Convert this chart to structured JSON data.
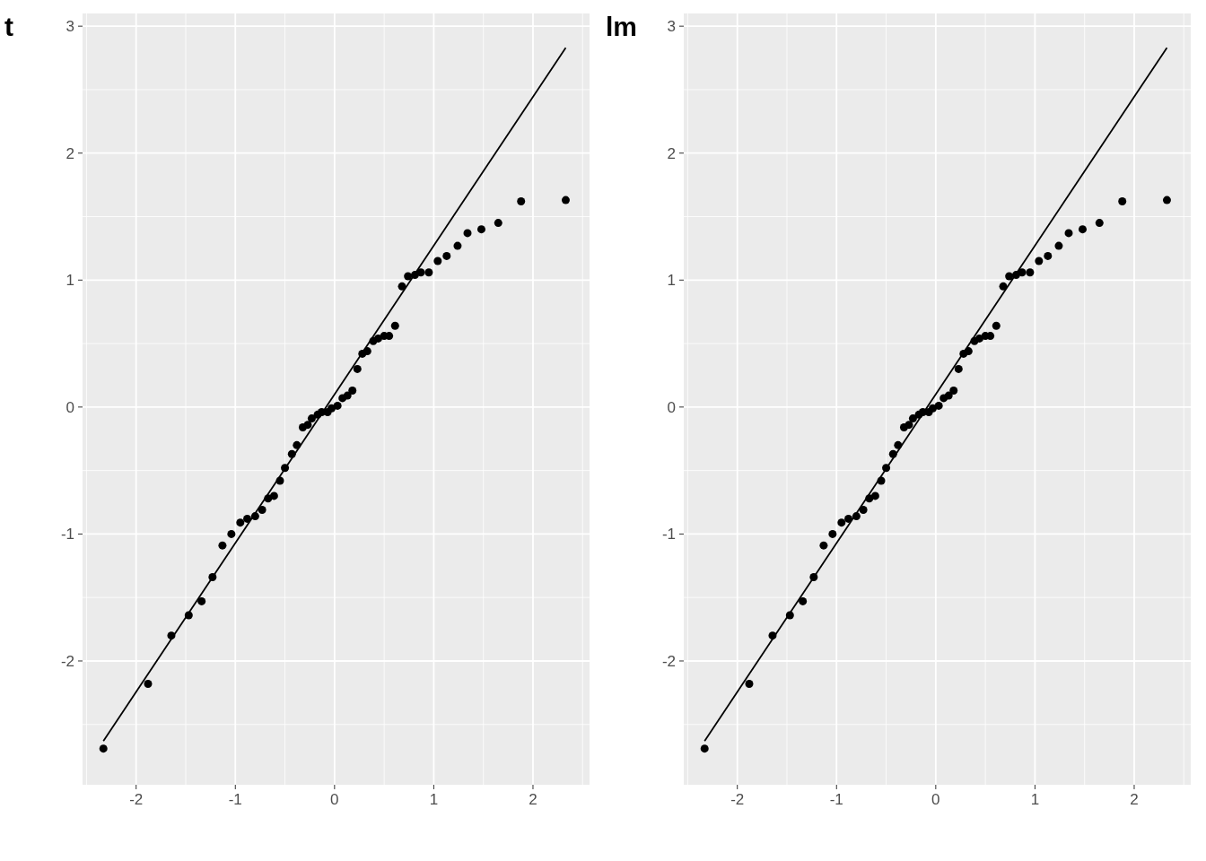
{
  "chart_data": [
    {
      "type": "scatter",
      "title": "t",
      "xlim": [
        -2.54,
        2.57
      ],
      "ylim": [
        -2.975,
        3.1
      ],
      "xticks": [
        -2,
        -1,
        0,
        1,
        2
      ],
      "yticks": [
        -2,
        -1,
        0,
        1,
        2,
        3
      ],
      "grid": true,
      "series": [
        {
          "marker": "circle",
          "color": "#000000",
          "x": [
            -2.33,
            -1.88,
            -1.645,
            -1.47,
            -1.34,
            -1.23,
            -1.13,
            -1.04,
            -0.95,
            -0.88,
            -0.8,
            -0.73,
            -0.67,
            -0.61,
            -0.55,
            -0.5,
            -0.43,
            -0.38,
            -0.32,
            -0.27,
            -0.23,
            -0.17,
            -0.13,
            -0.07,
            -0.03,
            0.03,
            0.08,
            0.13,
            0.18,
            0.23,
            0.28,
            0.33,
            0.39,
            0.44,
            0.5,
            0.55,
            0.61,
            0.68,
            0.74,
            0.81,
            0.87,
            0.95,
            1.04,
            1.13,
            1.24,
            1.34,
            1.48,
            1.65,
            1.88,
            2.33
          ],
          "values": [
            -2.69,
            -2.18,
            -1.8,
            -1.64,
            -1.53,
            -1.34,
            -1.09,
            -1.0,
            -0.91,
            -0.88,
            -0.86,
            -0.81,
            -0.72,
            -0.7,
            -0.58,
            -0.48,
            -0.37,
            -0.3,
            -0.16,
            -0.14,
            -0.09,
            -0.06,
            -0.04,
            -0.04,
            -0.01,
            0.01,
            0.07,
            0.09,
            0.13,
            0.3,
            0.42,
            0.44,
            0.52,
            0.54,
            0.56,
            0.56,
            0.64,
            0.95,
            1.03,
            1.04,
            1.06,
            1.06,
            1.15,
            1.19,
            1.27,
            1.37,
            1.4,
            1.45,
            1.62,
            1.63
          ]
        },
        {
          "type": "line",
          "color": "#000000",
          "x": [
            -2.33,
            2.33
          ],
          "values": [
            -2.63,
            2.83
          ]
        }
      ]
    },
    {
      "type": "scatter",
      "title": "lm",
      "xlim": [
        -2.54,
        2.57
      ],
      "ylim": [
        -2.975,
        3.1
      ],
      "xticks": [
        -2,
        -1,
        0,
        1,
        2
      ],
      "yticks": [
        -2,
        -1,
        0,
        1,
        2,
        3
      ],
      "grid": true,
      "series": [
        {
          "marker": "circle",
          "color": "#000000",
          "x": [
            -2.33,
            -1.88,
            -1.645,
            -1.47,
            -1.34,
            -1.23,
            -1.13,
            -1.04,
            -0.95,
            -0.88,
            -0.8,
            -0.73,
            -0.67,
            -0.61,
            -0.55,
            -0.5,
            -0.43,
            -0.38,
            -0.32,
            -0.27,
            -0.23,
            -0.17,
            -0.13,
            -0.07,
            -0.03,
            0.03,
            0.08,
            0.13,
            0.18,
            0.23,
            0.28,
            0.33,
            0.39,
            0.44,
            0.5,
            0.55,
            0.61,
            0.68,
            0.74,
            0.81,
            0.87,
            0.95,
            1.04,
            1.13,
            1.24,
            1.34,
            1.48,
            1.65,
            1.88,
            2.33
          ],
          "values": [
            -2.69,
            -2.18,
            -1.8,
            -1.64,
            -1.53,
            -1.34,
            -1.09,
            -1.0,
            -0.91,
            -0.88,
            -0.86,
            -0.81,
            -0.72,
            -0.7,
            -0.58,
            -0.48,
            -0.37,
            -0.3,
            -0.16,
            -0.14,
            -0.09,
            -0.06,
            -0.04,
            -0.04,
            -0.01,
            0.01,
            0.07,
            0.09,
            0.13,
            0.3,
            0.42,
            0.44,
            0.52,
            0.54,
            0.56,
            0.56,
            0.64,
            0.95,
            1.03,
            1.04,
            1.06,
            1.06,
            1.15,
            1.19,
            1.27,
            1.37,
            1.4,
            1.45,
            1.62,
            1.63
          ]
        },
        {
          "type": "line",
          "color": "#000000",
          "x": [
            -2.33,
            2.33
          ],
          "values": [
            -2.63,
            2.83
          ]
        }
      ]
    }
  ]
}
